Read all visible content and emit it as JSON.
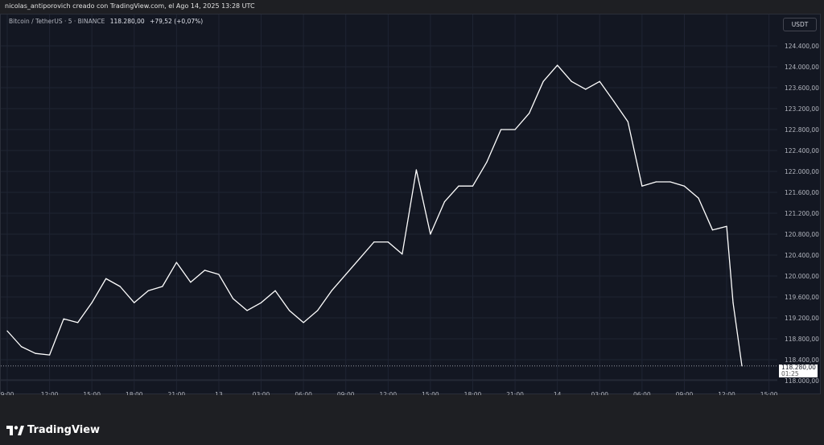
{
  "header": {
    "credit": "nicolas_antiporovich creado con TradingView.com, el Ago 14, 2025 13:28 UTC"
  },
  "legend": {
    "symbol": "Bitcoin / TetherUS · 5 · BINANCE",
    "last": "118.280,00",
    "change": "+79,52 (+0,07%)"
  },
  "price_axis": {
    "unit": "USDT",
    "current_price": "118.280,00",
    "countdown": "01:25"
  },
  "footer": {
    "brand": "TradingView"
  },
  "colors": {
    "background": "#131722",
    "line": "#ffffff",
    "grid": "#1f2433"
  },
  "chart_data": {
    "type": "line",
    "title": "",
    "xlabel": "",
    "ylabel": "",
    "ylim": [
      117900,
      124650
    ],
    "grid": true,
    "y_ticks": [
      "118.000,00",
      "118.400,00",
      "118.800,00",
      "119.200,00",
      "119.600,00",
      "120.000,00",
      "120.400,00",
      "120.800,00",
      "121.200,00",
      "121.600,00",
      "122.000,00",
      "122.400,00",
      "122.800,00",
      "123.200,00",
      "123.600,00",
      "124.000,00",
      "124.400,00"
    ],
    "x_ticks": [
      "9:00",
      "12:00",
      "15:00",
      "18:00",
      "21:00",
      "13",
      "03:00",
      "06:00",
      "09:00",
      "12:00",
      "15:00",
      "18:00",
      "21:00",
      "14",
      "03:00",
      "06:00",
      "09:00",
      "12:00",
      "15:00"
    ],
    "x_start": "2025-08-12 09:00",
    "x_step_hours": 1,
    "values": [
      118950,
      118650,
      118520,
      118490,
      119180,
      119110,
      119490,
      119950,
      119800,
      119490,
      119720,
      119800,
      120260,
      119880,
      120110,
      120030,
      119570,
      119340,
      119490,
      119720,
      119340,
      119110,
      119340,
      119720,
      120030,
      120340,
      120650,
      120650,
      120420,
      122030,
      120800,
      121420,
      121720,
      121720,
      122180,
      122800,
      122800,
      123110,
      123720,
      124030,
      123720,
      123570,
      123720,
      123340,
      122950,
      121720,
      121800,
      121800,
      121720,
      121490,
      120880,
      120950,
      119490,
      118280
    ],
    "last_price": 118280
  }
}
